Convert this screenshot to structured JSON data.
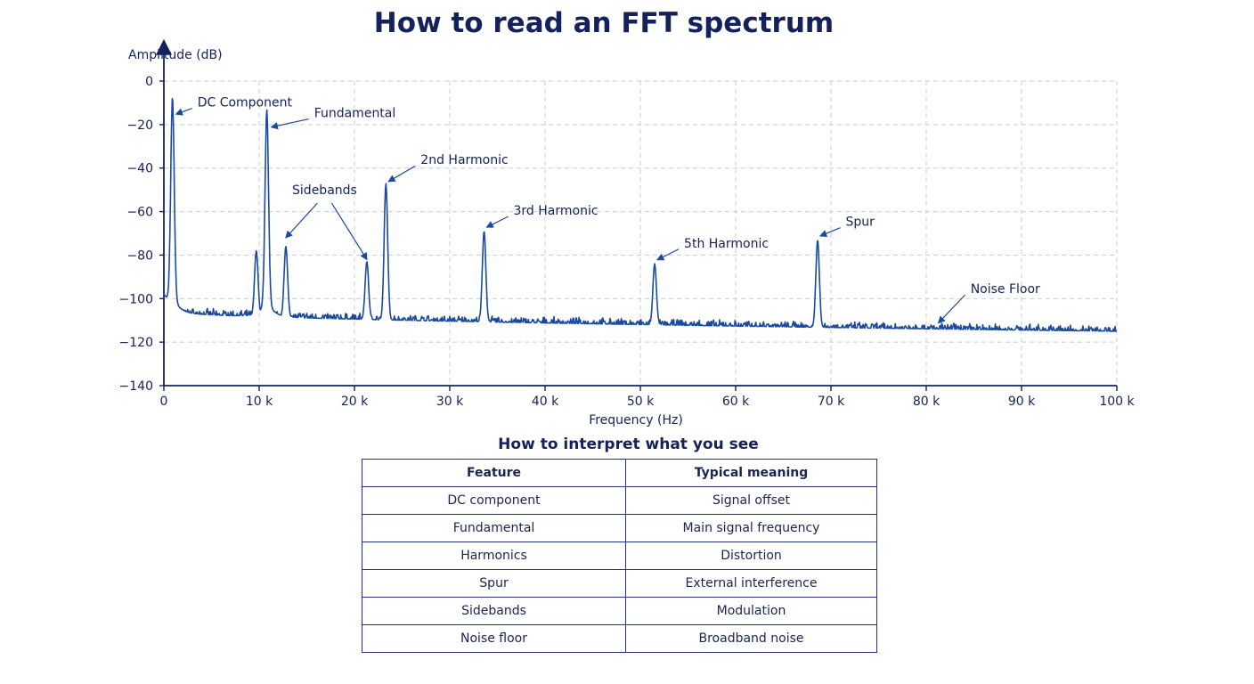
{
  "chart_data": {
    "type": "line",
    "title": "How to read an FFT spectrum",
    "xlabel": "Frequency (Hz)",
    "ylabel": "Amplitude (dB)",
    "xlim": [
      0,
      100000
    ],
    "ylim": [
      -140,
      0
    ],
    "x_ticks": [
      0,
      10000,
      20000,
      30000,
      40000,
      50000,
      60000,
      70000,
      80000,
      90000,
      100000
    ],
    "x_tick_labels": [
      "0",
      "10 k",
      "20 k",
      "30 k",
      "40 k",
      "50 k",
      "60 k",
      "70 k",
      "80 k",
      "90 k",
      "100 k"
    ],
    "y_ticks": [
      0,
      -20,
      -40,
      -60,
      -80,
      -100,
      -120,
      -140
    ],
    "y_tick_labels": [
      "0",
      "−20",
      "−40",
      "−60",
      "−80",
      "−100",
      "−120",
      "−140"
    ],
    "grid": true,
    "line_color": "#1a4aa0",
    "noise_floor": {
      "start_db": -106,
      "end_db": -115
    },
    "peaks": [
      {
        "x": 900,
        "y": -15
      },
      {
        "x": 9700,
        "y": -78
      },
      {
        "x": 10800,
        "y": -21
      },
      {
        "x": 12800,
        "y": -76
      },
      {
        "x": 21300,
        "y": -83
      },
      {
        "x": 23300,
        "y": -47
      },
      {
        "x": 33600,
        "y": -69
      },
      {
        "x": 51500,
        "y": -84
      },
      {
        "x": 68600,
        "y": -73
      }
    ],
    "annotations": [
      {
        "text": "DC Component",
        "target": [
          1000,
          -16
        ]
      },
      {
        "text": "Fundamental",
        "target": [
          11000,
          -22
        ]
      },
      {
        "text": "Sidebands",
        "targets": [
          [
            12800,
            -72
          ],
          [
            21300,
            -82
          ]
        ]
      },
      {
        "text": "2nd Harmonic",
        "target": [
          23300,
          -47
        ]
      },
      {
        "text": "3rd Harmonic",
        "target": [
          33600,
          -68
        ]
      },
      {
        "text": "5th Harmonic",
        "target": [
          51500,
          -83
        ]
      },
      {
        "text": "Spur",
        "target": [
          68600,
          -72
        ]
      },
      {
        "text": "Noise Floor",
        "target": [
          81000,
          -112
        ]
      }
    ]
  },
  "table": {
    "title": "How to interpret what you see",
    "headers": [
      "Feature",
      "Typical meaning"
    ],
    "rows": [
      [
        "DC component",
        "Signal offset"
      ],
      [
        "Fundamental",
        "Main signal frequency"
      ],
      [
        "Harmonics",
        "Distortion"
      ],
      [
        "Spur",
        "External interference"
      ],
      [
        "Sidebands",
        "Modulation"
      ],
      [
        "Noise floor",
        "Broadband noise"
      ]
    ]
  }
}
